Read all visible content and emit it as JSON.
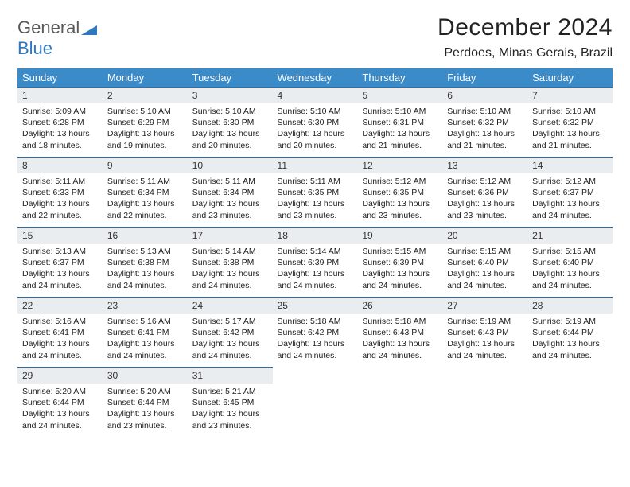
{
  "logo": {
    "part1": "General",
    "part2": "Blue"
  },
  "title": "December 2024",
  "location": "Perdoes, Minas Gerais, Brazil",
  "colors": {
    "header_bg": "#3b8bc9",
    "header_text": "#ffffff",
    "daynum_bg": "#e9edf0",
    "daynum_border": "#2f6fa8",
    "logo_gray": "#5a5a5a",
    "logo_blue": "#2f78bf"
  },
  "day_names": [
    "Sunday",
    "Monday",
    "Tuesday",
    "Wednesday",
    "Thursday",
    "Friday",
    "Saturday"
  ],
  "weeks": [
    [
      {
        "n": "1",
        "sr": "5:09 AM",
        "ss": "6:28 PM",
        "dh": "13",
        "dm": "18"
      },
      {
        "n": "2",
        "sr": "5:10 AM",
        "ss": "6:29 PM",
        "dh": "13",
        "dm": "19"
      },
      {
        "n": "3",
        "sr": "5:10 AM",
        "ss": "6:30 PM",
        "dh": "13",
        "dm": "20"
      },
      {
        "n": "4",
        "sr": "5:10 AM",
        "ss": "6:30 PM",
        "dh": "13",
        "dm": "20"
      },
      {
        "n": "5",
        "sr": "5:10 AM",
        "ss": "6:31 PM",
        "dh": "13",
        "dm": "21"
      },
      {
        "n": "6",
        "sr": "5:10 AM",
        "ss": "6:32 PM",
        "dh": "13",
        "dm": "21"
      },
      {
        "n": "7",
        "sr": "5:10 AM",
        "ss": "6:32 PM",
        "dh": "13",
        "dm": "21"
      }
    ],
    [
      {
        "n": "8",
        "sr": "5:11 AM",
        "ss": "6:33 PM",
        "dh": "13",
        "dm": "22"
      },
      {
        "n": "9",
        "sr": "5:11 AM",
        "ss": "6:34 PM",
        "dh": "13",
        "dm": "22"
      },
      {
        "n": "10",
        "sr": "5:11 AM",
        "ss": "6:34 PM",
        "dh": "13",
        "dm": "23"
      },
      {
        "n": "11",
        "sr": "5:11 AM",
        "ss": "6:35 PM",
        "dh": "13",
        "dm": "23"
      },
      {
        "n": "12",
        "sr": "5:12 AM",
        "ss": "6:35 PM",
        "dh": "13",
        "dm": "23"
      },
      {
        "n": "13",
        "sr": "5:12 AM",
        "ss": "6:36 PM",
        "dh": "13",
        "dm": "23"
      },
      {
        "n": "14",
        "sr": "5:12 AM",
        "ss": "6:37 PM",
        "dh": "13",
        "dm": "24"
      }
    ],
    [
      {
        "n": "15",
        "sr": "5:13 AM",
        "ss": "6:37 PM",
        "dh": "13",
        "dm": "24"
      },
      {
        "n": "16",
        "sr": "5:13 AM",
        "ss": "6:38 PM",
        "dh": "13",
        "dm": "24"
      },
      {
        "n": "17",
        "sr": "5:14 AM",
        "ss": "6:38 PM",
        "dh": "13",
        "dm": "24"
      },
      {
        "n": "18",
        "sr": "5:14 AM",
        "ss": "6:39 PM",
        "dh": "13",
        "dm": "24"
      },
      {
        "n": "19",
        "sr": "5:15 AM",
        "ss": "6:39 PM",
        "dh": "13",
        "dm": "24"
      },
      {
        "n": "20",
        "sr": "5:15 AM",
        "ss": "6:40 PM",
        "dh": "13",
        "dm": "24"
      },
      {
        "n": "21",
        "sr": "5:15 AM",
        "ss": "6:40 PM",
        "dh": "13",
        "dm": "24"
      }
    ],
    [
      {
        "n": "22",
        "sr": "5:16 AM",
        "ss": "6:41 PM",
        "dh": "13",
        "dm": "24"
      },
      {
        "n": "23",
        "sr": "5:16 AM",
        "ss": "6:41 PM",
        "dh": "13",
        "dm": "24"
      },
      {
        "n": "24",
        "sr": "5:17 AM",
        "ss": "6:42 PM",
        "dh": "13",
        "dm": "24"
      },
      {
        "n": "25",
        "sr": "5:18 AM",
        "ss": "6:42 PM",
        "dh": "13",
        "dm": "24"
      },
      {
        "n": "26",
        "sr": "5:18 AM",
        "ss": "6:43 PM",
        "dh": "13",
        "dm": "24"
      },
      {
        "n": "27",
        "sr": "5:19 AM",
        "ss": "6:43 PM",
        "dh": "13",
        "dm": "24"
      },
      {
        "n": "28",
        "sr": "5:19 AM",
        "ss": "6:44 PM",
        "dh": "13",
        "dm": "24"
      }
    ],
    [
      {
        "n": "29",
        "sr": "5:20 AM",
        "ss": "6:44 PM",
        "dh": "13",
        "dm": "24"
      },
      {
        "n": "30",
        "sr": "5:20 AM",
        "ss": "6:44 PM",
        "dh": "13",
        "dm": "23"
      },
      {
        "n": "31",
        "sr": "5:21 AM",
        "ss": "6:45 PM",
        "dh": "13",
        "dm": "23"
      },
      null,
      null,
      null,
      null
    ]
  ],
  "labels": {
    "sunrise": "Sunrise:",
    "sunset": "Sunset:",
    "daylight_prefix": "Daylight:",
    "hours_word": "hours",
    "and_word": "and",
    "minutes_word": "minutes."
  }
}
